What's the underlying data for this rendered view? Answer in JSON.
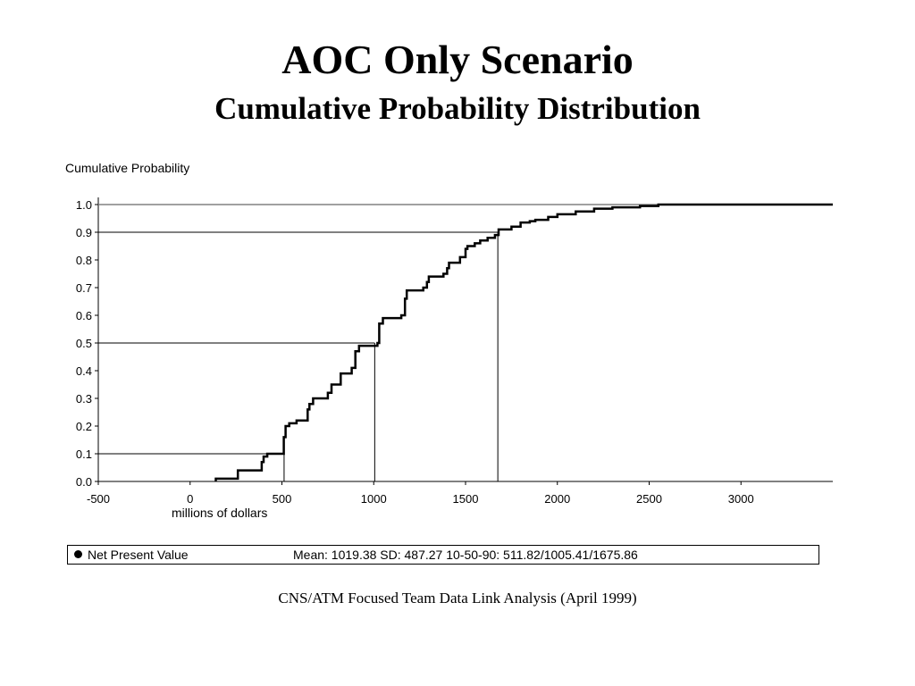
{
  "title": "AOC Only Scenario",
  "subtitle": "Cumulative Probability Distribution",
  "footer": "CNS/ATM Focused Team Data Link Analysis (April 1999)",
  "legend": {
    "series_name": "Net Present Value",
    "stats_text": "Mean: 1019.38 SD: 487.27 10-50-90: 511.82/1005.41/1675.86"
  },
  "chart_data": {
    "type": "line",
    "title": "",
    "xlabel": "millions of dollars",
    "ylabel": "Cumulative Probability",
    "xlim": [
      -500,
      3500
    ],
    "ylim": [
      0,
      1.0
    ],
    "x_ticks": [
      "-500",
      "0",
      "500",
      "1000",
      "1500",
      "2000",
      "2500",
      "3000"
    ],
    "y_ticks": [
      "0.0",
      "0.1",
      "0.2",
      "0.3",
      "0.4",
      "0.5",
      "0.6",
      "0.7",
      "0.8",
      "0.9",
      "1.0"
    ],
    "grid": false,
    "legend_position": "bottom",
    "percentile_markers": [
      {
        "p": 0.1,
        "x": 511.82
      },
      {
        "p": 0.5,
        "x": 1005.41
      },
      {
        "p": 0.9,
        "x": 1675.86
      }
    ],
    "series": [
      {
        "name": "Net Present Value",
        "step": true,
        "x": [
          140,
          260,
          390,
          400,
          420,
          510,
          520,
          540,
          580,
          640,
          650,
          670,
          750,
          770,
          820,
          880,
          900,
          920,
          1020,
          1030,
          1050,
          1150,
          1170,
          1180,
          1270,
          1290,
          1300,
          1380,
          1400,
          1410,
          1470,
          1500,
          1510,
          1550,
          1580,
          1620,
          1660,
          1680,
          1750,
          1800,
          1850,
          1880,
          1950,
          2000,
          2100,
          2200,
          2300,
          2450,
          2550,
          3500
        ],
        "y": [
          0.01,
          0.04,
          0.07,
          0.09,
          0.1,
          0.16,
          0.2,
          0.21,
          0.22,
          0.26,
          0.28,
          0.3,
          0.32,
          0.35,
          0.39,
          0.41,
          0.47,
          0.49,
          0.5,
          0.57,
          0.59,
          0.6,
          0.66,
          0.69,
          0.7,
          0.72,
          0.74,
          0.75,
          0.77,
          0.79,
          0.81,
          0.84,
          0.85,
          0.86,
          0.87,
          0.88,
          0.89,
          0.91,
          0.92,
          0.935,
          0.94,
          0.945,
          0.955,
          0.965,
          0.975,
          0.985,
          0.99,
          0.995,
          1.0,
          1.0
        ]
      }
    ]
  }
}
